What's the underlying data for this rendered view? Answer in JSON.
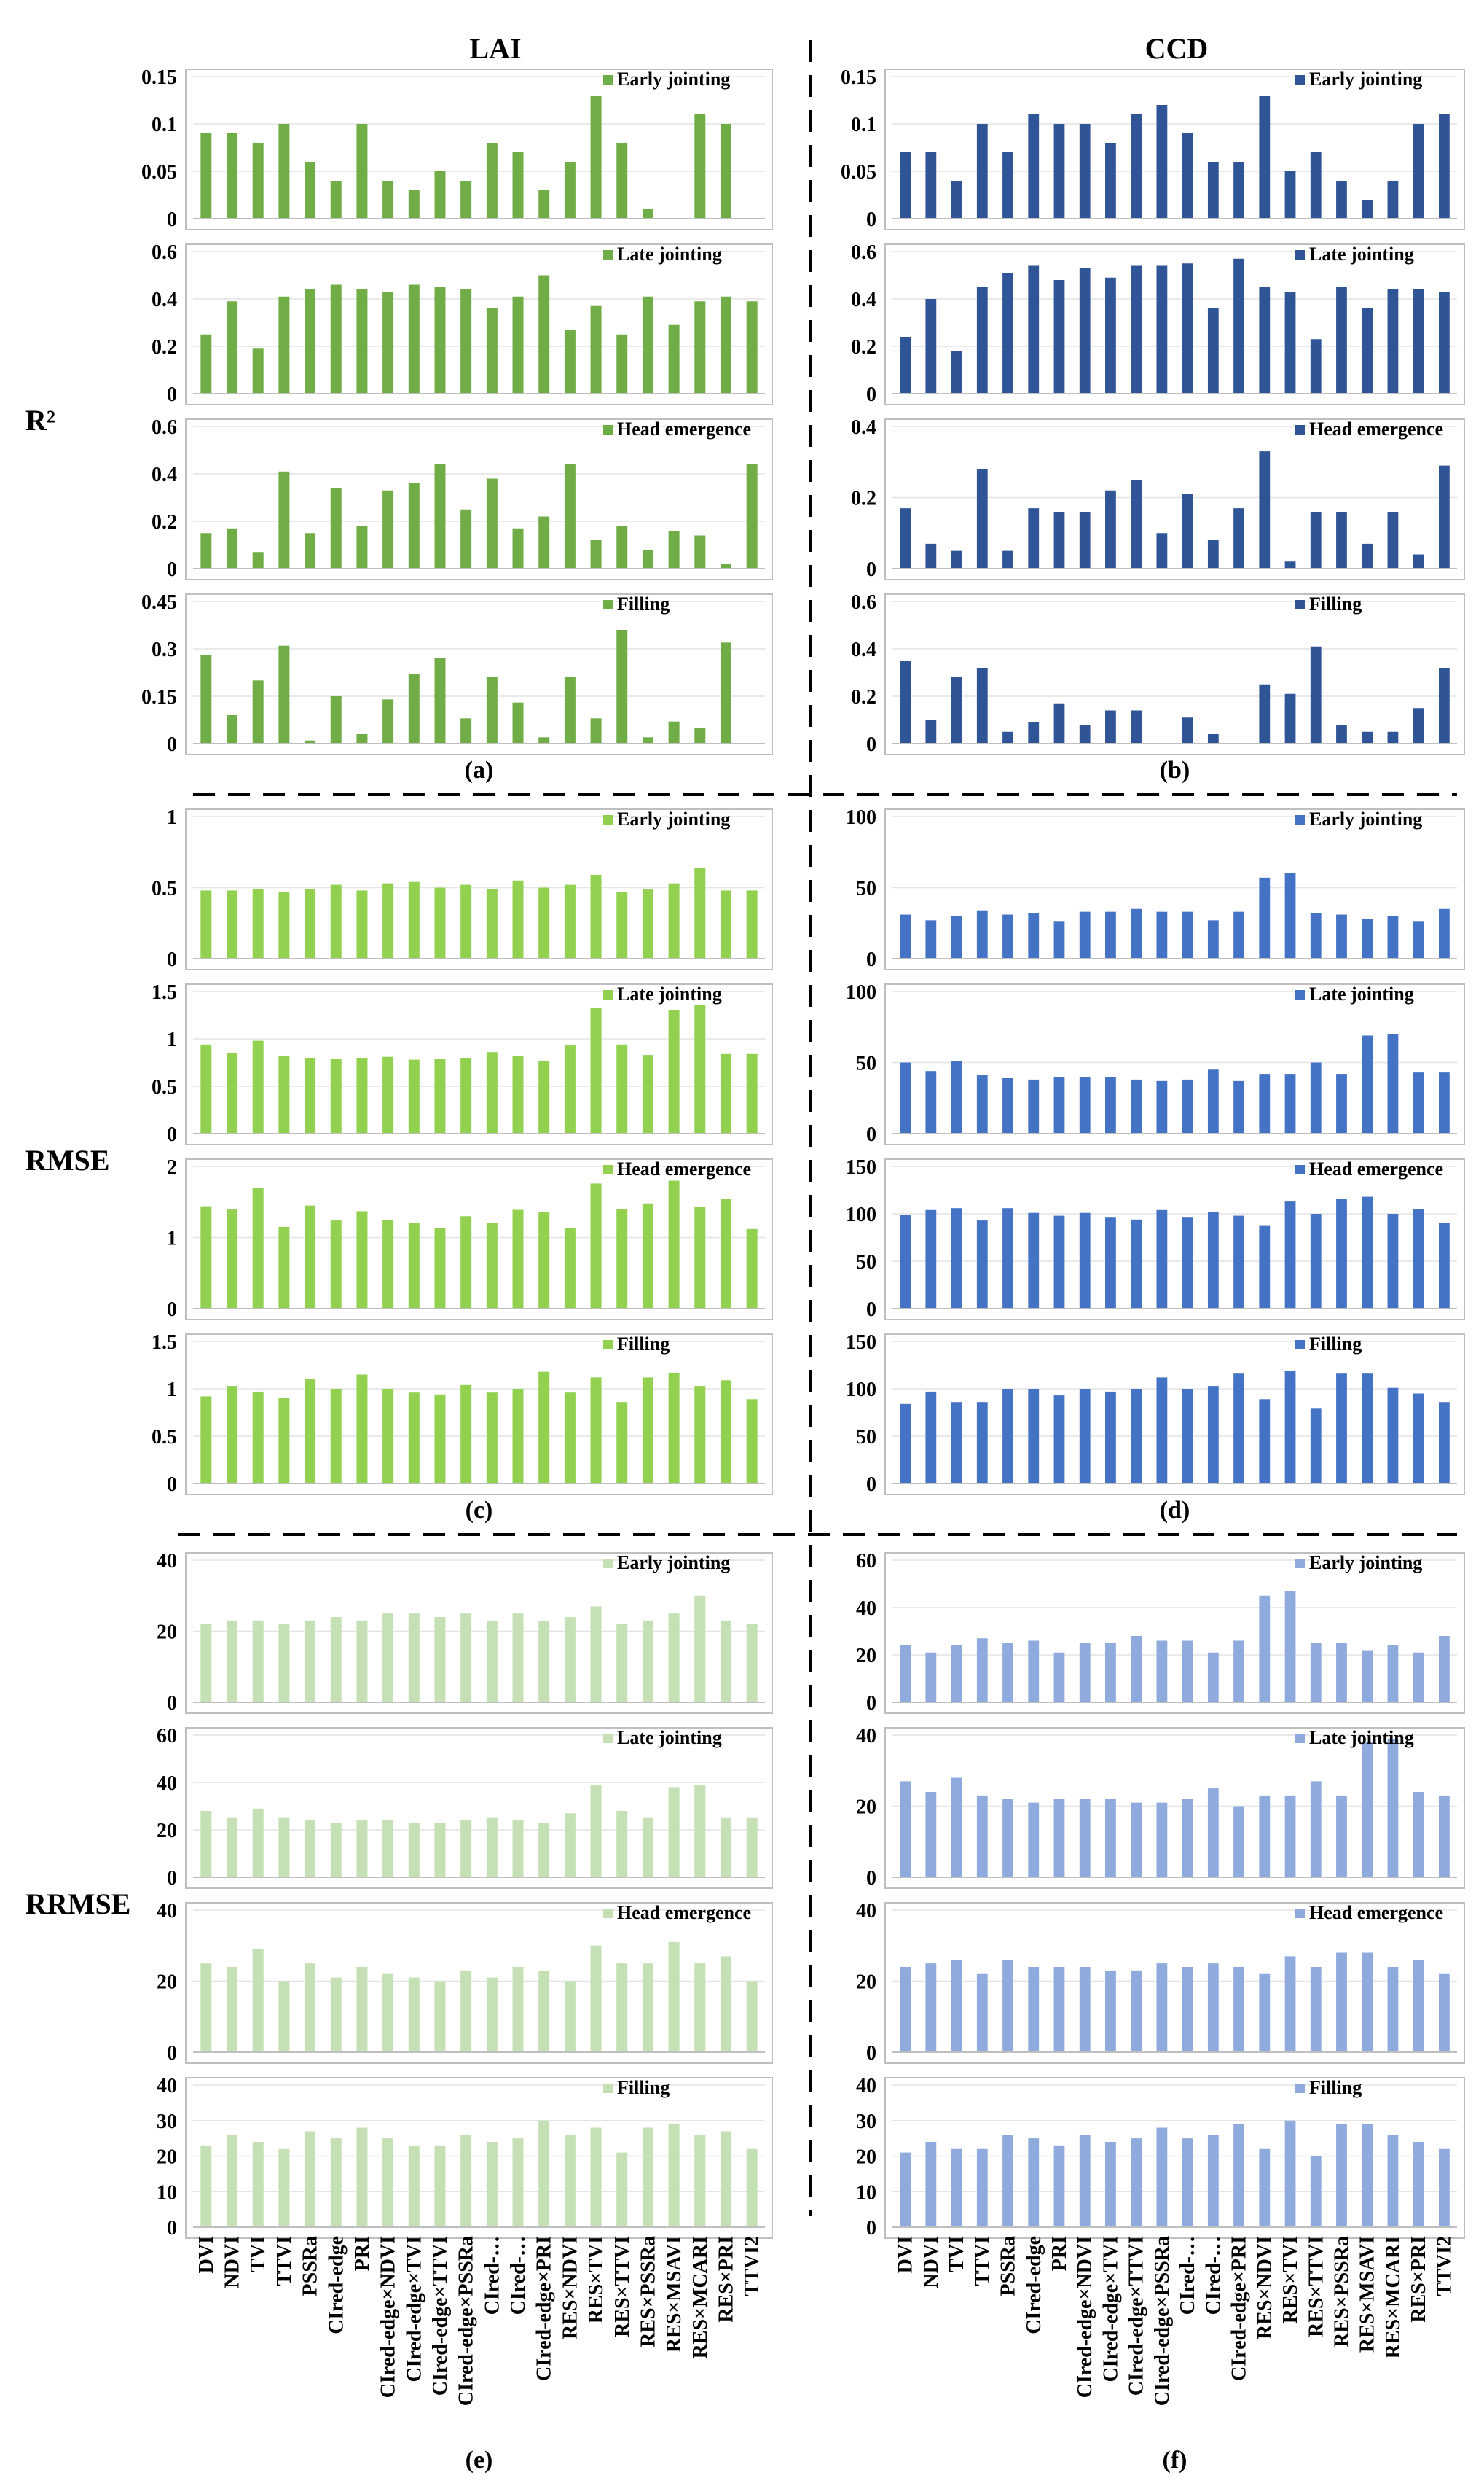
{
  "figure": {
    "column_titles": [
      "LAI",
      "CCD"
    ],
    "row_labels": [
      "R²",
      "RMSE",
      "RRMSE"
    ],
    "panel_letters": [
      "(a)",
      "(b)",
      "(c)",
      "(d)",
      "(e)",
      "(f)"
    ],
    "x_categories": [
      "DVI",
      "NDVI",
      "TVI",
      "TTVI",
      "PSSRa",
      "CIred-edge",
      "PRI",
      "CIred-edge×NDVI",
      "CIred-edge×TVI",
      "CIred-edge×TTVI",
      "CIred-edge×PSSRa",
      "CIred-…",
      "CIred-…",
      "CIred-edge×PRI",
      "RES×NDVI",
      "RES×TVI",
      "RES×TTVI",
      "RES×PSSRa",
      "RES×MSAVI",
      "RES×MCARI",
      "RES×PRI",
      "TTVI2"
    ],
    "stages": [
      "Early jointing",
      "Late jointing",
      "Head emergence",
      "Filling"
    ],
    "colors": {
      "r2_lai": "#70AD47",
      "r2_ccd": "#2F5597",
      "rmse_lai": "#92D050",
      "rmse_ccd": "#4472C4",
      "rrmse_lai": "#C5E0B4",
      "rrmse_ccd": "#8FAADC"
    }
  },
  "chart_data": [
    {
      "id": "a",
      "type": "bar",
      "metric": "R²",
      "variable": "LAI",
      "panel": "(a)",
      "color": "#70AD47",
      "subplots": [
        {
          "legend": "Early jointing",
          "yticks": [
            "0",
            "0.05",
            "0.1",
            "0.15"
          ],
          "ylim": [
            0,
            0.15
          ],
          "values": [
            0.09,
            0.09,
            0.08,
            0.1,
            0.06,
            0.04,
            0.1,
            0.04,
            0.03,
            0.05,
            0.04,
            0.08,
            0.07,
            0.03,
            0.06,
            0.13,
            0.08,
            0.01,
            0.0,
            0.11,
            0.1,
            0.0
          ]
        },
        {
          "legend": "Late jointing",
          "yticks": [
            "0",
            "0.2",
            "0.4",
            "0.6"
          ],
          "ylim": [
            0,
            0.6
          ],
          "values": [
            0.25,
            0.39,
            0.19,
            0.41,
            0.44,
            0.46,
            0.44,
            0.43,
            0.46,
            0.45,
            0.44,
            0.36,
            0.41,
            0.5,
            0.27,
            0.37,
            0.25,
            0.41,
            0.29,
            0.39,
            0.41,
            0.39
          ]
        },
        {
          "legend": "Head emergence",
          "yticks": [
            "0",
            "0.2",
            "0.4",
            "0.6"
          ],
          "ylim": [
            0,
            0.6
          ],
          "values": [
            0.15,
            0.17,
            0.07,
            0.41,
            0.15,
            0.34,
            0.18,
            0.33,
            0.36,
            0.44,
            0.25,
            0.38,
            0.17,
            0.22,
            0.44,
            0.12,
            0.18,
            0.08,
            0.16,
            0.14,
            0.02,
            0.44
          ]
        },
        {
          "legend": "Filling",
          "yticks": [
            "0",
            "0.15",
            "0.3",
            "0.45"
          ],
          "ylim": [
            0,
            0.45
          ],
          "values": [
            0.28,
            0.09,
            0.2,
            0.31,
            0.01,
            0.15,
            0.03,
            0.14,
            0.22,
            0.27,
            0.08,
            0.21,
            0.13,
            0.02,
            0.21,
            0.08,
            0.36,
            0.02,
            0.07,
            0.05,
            0.32,
            0.0
          ]
        }
      ]
    },
    {
      "id": "b",
      "type": "bar",
      "metric": "R²",
      "variable": "CCD",
      "panel": "(b)",
      "color": "#2F5597",
      "subplots": [
        {
          "legend": "Early jointing",
          "yticks": [
            "0",
            "0.05",
            "0.1",
            "0.15"
          ],
          "ylim": [
            0,
            0.15
          ],
          "values": [
            0.07,
            0.07,
            0.04,
            0.1,
            0.07,
            0.11,
            0.1,
            0.1,
            0.08,
            0.11,
            0.12,
            0.09,
            0.06,
            0.06,
            0.13,
            0.05,
            0.07,
            0.04,
            0.02,
            0.04,
            0.1,
            0.11
          ]
        },
        {
          "legend": "Late jointing",
          "yticks": [
            "0",
            "0.2",
            "0.4",
            "0.6"
          ],
          "ylim": [
            0,
            0.6
          ],
          "values": [
            0.24,
            0.4,
            0.18,
            0.45,
            0.51,
            0.54,
            0.48,
            0.53,
            0.49,
            0.54,
            0.54,
            0.55,
            0.36,
            0.57,
            0.45,
            0.43,
            0.23,
            0.45,
            0.36,
            0.44,
            0.44,
            0.43
          ]
        },
        {
          "legend": "Head emergence",
          "yticks": [
            "0",
            "0.2",
            "0.4"
          ],
          "ylim": [
            0,
            0.4
          ],
          "values": [
            0.17,
            0.07,
            0.05,
            0.28,
            0.05,
            0.17,
            0.16,
            0.16,
            0.22,
            0.25,
            0.1,
            0.21,
            0.08,
            0.17,
            0.33,
            0.02,
            0.16,
            0.16,
            0.07,
            0.16,
            0.04,
            0.29
          ]
        },
        {
          "legend": "Filling",
          "yticks": [
            "0",
            "0.2",
            "0.4",
            "0.6"
          ],
          "ylim": [
            0,
            0.6
          ],
          "values": [
            0.35,
            0.1,
            0.28,
            0.32,
            0.05,
            0.09,
            0.17,
            0.08,
            0.14,
            0.14,
            0.0,
            0.11,
            0.04,
            0.0,
            0.25,
            0.21,
            0.41,
            0.08,
            0.05,
            0.05,
            0.15,
            0.32
          ]
        }
      ]
    },
    {
      "id": "c",
      "type": "bar",
      "metric": "RMSE",
      "variable": "LAI",
      "panel": "(c)",
      "color": "#92D050",
      "subplots": [
        {
          "legend": "Early jointing",
          "yticks": [
            "0",
            "0.5",
            "1"
          ],
          "ylim": [
            0,
            1
          ],
          "values": [
            0.48,
            0.48,
            0.49,
            0.47,
            0.49,
            0.52,
            0.48,
            0.53,
            0.54,
            0.5,
            0.52,
            0.49,
            0.55,
            0.5,
            0.52,
            0.59,
            0.47,
            0.49,
            0.53,
            0.64,
            0.48,
            0.48
          ]
        },
        {
          "legend": "Late jointing",
          "yticks": [
            "0",
            "0.5",
            "1",
            "1.5"
          ],
          "ylim": [
            0,
            1.5
          ],
          "values": [
            0.94,
            0.85,
            0.98,
            0.82,
            0.8,
            0.79,
            0.8,
            0.81,
            0.78,
            0.79,
            0.8,
            0.86,
            0.82,
            0.77,
            0.93,
            1.33,
            0.94,
            0.83,
            1.3,
            1.36,
            0.84,
            0.84
          ]
        },
        {
          "legend": "Head emergence",
          "yticks": [
            "0",
            "1",
            "2"
          ],
          "ylim": [
            0,
            2
          ],
          "values": [
            1.44,
            1.4,
            1.7,
            1.15,
            1.45,
            1.24,
            1.37,
            1.25,
            1.21,
            1.13,
            1.3,
            1.2,
            1.39,
            1.36,
            1.13,
            1.76,
            1.4,
            1.48,
            1.8,
            1.43,
            1.54,
            1.12
          ]
        },
        {
          "legend": "Filling",
          "yticks": [
            "0",
            "0.5",
            "1",
            "1.5"
          ],
          "ylim": [
            0,
            1.5
          ],
          "values": [
            0.92,
            1.03,
            0.97,
            0.9,
            1.1,
            1.0,
            1.15,
            1.0,
            0.96,
            0.94,
            1.04,
            0.96,
            1.0,
            1.18,
            0.96,
            1.12,
            0.86,
            1.12,
            1.17,
            1.03,
            1.09,
            0.89
          ]
        }
      ]
    },
    {
      "id": "d",
      "type": "bar",
      "metric": "RMSE",
      "variable": "CCD",
      "panel": "(d)",
      "color": "#4472C4",
      "subplots": [
        {
          "legend": "Early jointing",
          "yticks": [
            "0",
            "50",
            "100"
          ],
          "ylim": [
            0,
            100
          ],
          "values": [
            31,
            27,
            30,
            34,
            31,
            32,
            26,
            33,
            33,
            35,
            33,
            33,
            27,
            33,
            57,
            60,
            32,
            31,
            28,
            30,
            26,
            35
          ]
        },
        {
          "legend": "Late jointing",
          "yticks": [
            "0",
            "50",
            "100"
          ],
          "ylim": [
            0,
            100
          ],
          "values": [
            50,
            44,
            51,
            41,
            39,
            38,
            40,
            40,
            40,
            38,
            37,
            38,
            45,
            37,
            42,
            42,
            50,
            42,
            69,
            70,
            43,
            43
          ]
        },
        {
          "legend": "Head emergence",
          "yticks": [
            "0",
            "50",
            "100",
            "150"
          ],
          "ylim": [
            0,
            150
          ],
          "values": [
            99,
            104,
            106,
            93,
            106,
            101,
            98,
            101,
            96,
            94,
            104,
            96,
            102,
            98,
            88,
            113,
            100,
            116,
            118,
            100,
            105,
            90
          ]
        },
        {
          "legend": "Filling",
          "yticks": [
            "0",
            "50",
            "100",
            "150"
          ],
          "ylim": [
            0,
            150
          ],
          "values": [
            84,
            97,
            86,
            86,
            100,
            100,
            93,
            100,
            97,
            100,
            112,
            100,
            103,
            116,
            89,
            119,
            79,
            116,
            116,
            101,
            95,
            86
          ]
        }
      ]
    },
    {
      "id": "e",
      "type": "bar",
      "metric": "RRMSE",
      "variable": "LAI",
      "panel": "(e)",
      "color": "#C5E0B4",
      "subplots": [
        {
          "legend": "Early jointing",
          "yticks": [
            "0",
            "20",
            "40"
          ],
          "ylim": [
            0,
            40
          ],
          "values": [
            22,
            23,
            23,
            22,
            23,
            24,
            23,
            25,
            25,
            24,
            25,
            23,
            25,
            23,
            24,
            27,
            22,
            23,
            25,
            30,
            23,
            22
          ]
        },
        {
          "legend": "Late jointing",
          "yticks": [
            "0",
            "20",
            "40",
            "60"
          ],
          "ylim": [
            0,
            60
          ],
          "values": [
            28,
            25,
            29,
            25,
            24,
            23,
            24,
            24,
            23,
            23,
            24,
            25,
            24,
            23,
            27,
            39,
            28,
            25,
            38,
            39,
            25,
            25
          ]
        },
        {
          "legend": "Head emergence",
          "yticks": [
            "0",
            "20",
            "40"
          ],
          "ylim": [
            0,
            40
          ],
          "values": [
            25,
            24,
            29,
            20,
            25,
            21,
            24,
            22,
            21,
            20,
            23,
            21,
            24,
            23,
            20,
            30,
            25,
            25,
            31,
            25,
            27,
            20
          ]
        },
        {
          "legend": "Filling",
          "yticks": [
            "0",
            "10",
            "20",
            "30",
            "40"
          ],
          "ylim": [
            0,
            40
          ],
          "values": [
            23,
            26,
            24,
            22,
            27,
            25,
            28,
            25,
            23,
            23,
            26,
            24,
            25,
            30,
            26,
            28,
            21,
            28,
            29,
            26,
            27,
            22
          ]
        }
      ]
    },
    {
      "id": "f",
      "type": "bar",
      "metric": "RRMSE",
      "variable": "CCD",
      "panel": "(f)",
      "color": "#8FAADC",
      "subplots": [
        {
          "legend": "Early jointing",
          "yticks": [
            "0",
            "20",
            "40",
            "60"
          ],
          "ylim": [
            0,
            60
          ],
          "values": [
            24,
            21,
            24,
            27,
            25,
            26,
            21,
            25,
            25,
            28,
            26,
            26,
            21,
            26,
            45,
            47,
            25,
            25,
            22,
            24,
            21,
            28
          ]
        },
        {
          "legend": "Late jointing",
          "yticks": [
            "0",
            "20",
            "40"
          ],
          "ylim": [
            0,
            40
          ],
          "values": [
            27,
            24,
            28,
            23,
            22,
            21,
            22,
            22,
            22,
            21,
            21,
            22,
            25,
            20,
            23,
            23,
            27,
            23,
            38,
            39,
            24,
            23
          ]
        },
        {
          "legend": "Head emergence",
          "yticks": [
            "0",
            "20",
            "40"
          ],
          "ylim": [
            0,
            40
          ],
          "values": [
            24,
            25,
            26,
            22,
            26,
            24,
            24,
            24,
            23,
            23,
            25,
            24,
            25,
            24,
            22,
            27,
            24,
            28,
            28,
            24,
            26,
            22
          ]
        },
        {
          "legend": "Filling",
          "yticks": [
            "0",
            "10",
            "20",
            "30",
            "40"
          ],
          "ylim": [
            0,
            40
          ],
          "values": [
            21,
            24,
            22,
            22,
            26,
            25,
            23,
            26,
            24,
            25,
            28,
            25,
            26,
            29,
            22,
            30,
            20,
            29,
            29,
            26,
            24,
            22
          ]
        }
      ]
    }
  ]
}
